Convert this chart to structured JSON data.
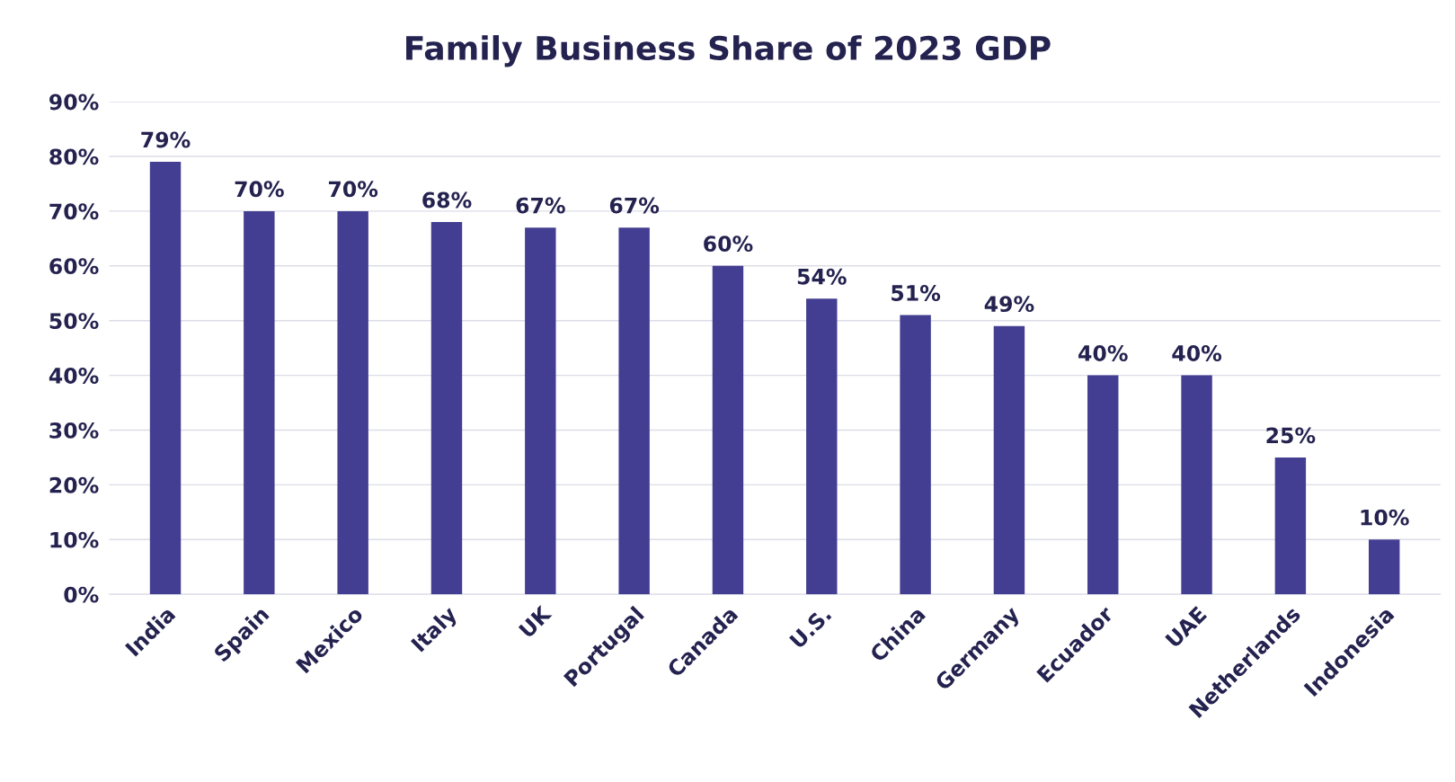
{
  "chart_data": {
    "type": "bar",
    "title": "Family Business Share of 2023 GDP",
    "categories": [
      "India",
      "Spain",
      "Mexico",
      "Italy",
      "UK",
      "Portugal",
      "Canada",
      "U.S.",
      "China",
      "Germany",
      "Ecuador",
      "UAE",
      "Netherlands",
      "Indonesia"
    ],
    "values": [
      79,
      70,
      70,
      68,
      67,
      67,
      60,
      54,
      51,
      49,
      40,
      40,
      25,
      10
    ],
    "value_labels": [
      "79%",
      "70%",
      "70%",
      "68%",
      "67%",
      "67%",
      "60%",
      "54%",
      "51%",
      "49%",
      "40%",
      "40%",
      "25%",
      "10%"
    ],
    "color": "#433e91",
    "ylim": [
      0,
      90
    ],
    "yticks": [
      {
        "value": 0,
        "label": "0%"
      },
      {
        "value": 10,
        "label": "10%"
      },
      {
        "value": 20,
        "label": "20%"
      },
      {
        "value": 30,
        "label": "30%"
      },
      {
        "value": 40,
        "label": "40%"
      },
      {
        "value": 50,
        "label": "50%"
      },
      {
        "value": 60,
        "label": "60%"
      },
      {
        "value": 70,
        "label": "70%"
      },
      {
        "value": 80,
        "label": "80%"
      },
      {
        "value": 90,
        "label": "90%"
      }
    ],
    "grid": "y"
  }
}
